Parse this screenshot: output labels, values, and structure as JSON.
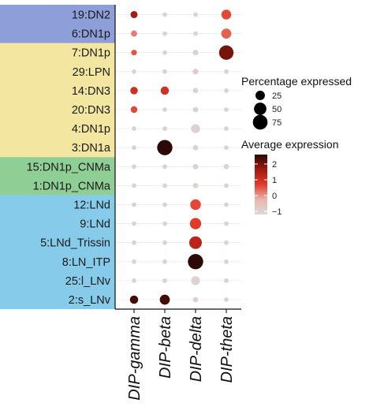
{
  "chart_data": {
    "type": "dotplot",
    "categories": [
      "19:DN2",
      "6:DN1p",
      "7:DN1p",
      "29:LPN",
      "14:DN3",
      "20:DN3",
      "4:DN1p",
      "3:DN1a",
      "15:DN1p_CNMa",
      "1:DN1p_CNMa",
      "12:LNd",
      "9:LNd",
      "5:LNd_Trissin",
      "8:LN_ITP",
      "25:l_LNv",
      "2:s_LNv"
    ],
    "genes": [
      "DIP-gamma",
      "DIP-beta",
      "DIP-delta",
      "DIP-theta"
    ],
    "groups": [
      {
        "color": "#8d9ed8",
        "from": 0,
        "to": 1
      },
      {
        "color": "#f3e6a0",
        "from": 2,
        "to": 7
      },
      {
        "color": "#8fcf95",
        "from": 8,
        "to": 9
      },
      {
        "color": "#86cbe9",
        "from": 10,
        "to": 15
      }
    ],
    "pct": [
      [
        12,
        3,
        3,
        28
      ],
      [
        8,
        3,
        3,
        30
      ],
      [
        6,
        3,
        6,
        72
      ],
      [
        3,
        3,
        6,
        3
      ],
      [
        14,
        18,
        5,
        3
      ],
      [
        10,
        3,
        5,
        3
      ],
      [
        3,
        3,
        22,
        3
      ],
      [
        3,
        82,
        5,
        3
      ],
      [
        3,
        3,
        5,
        5
      ],
      [
        3,
        3,
        5,
        3
      ],
      [
        3,
        3,
        35,
        3
      ],
      [
        3,
        3,
        40,
        3
      ],
      [
        3,
        3,
        52,
        3
      ],
      [
        3,
        3,
        82,
        3
      ],
      [
        3,
        3,
        22,
        3
      ],
      [
        18,
        30,
        5,
        3
      ]
    ],
    "avg": [
      [
        1.6,
        -1,
        -1,
        0.6
      ],
      [
        0.2,
        -1,
        -1,
        0.4
      ],
      [
        0.5,
        -1,
        -1,
        2.0
      ],
      [
        -1,
        -1,
        -0.8,
        -1
      ],
      [
        1.0,
        1.0,
        -1,
        -1
      ],
      [
        0.6,
        -1,
        -1,
        -1
      ],
      [
        -1,
        -1,
        -1,
        -1
      ],
      [
        -1,
        2.8,
        -1,
        -1
      ],
      [
        -1,
        -1,
        -1,
        -1
      ],
      [
        -1,
        -1,
        -1,
        -1
      ],
      [
        -1,
        -1,
        0.6,
        -1
      ],
      [
        -1,
        -1,
        0.7,
        -1
      ],
      [
        -1,
        -1,
        1.3,
        -1
      ],
      [
        -1,
        -1,
        2.8,
        -1
      ],
      [
        -1,
        -1,
        -1,
        -1
      ],
      [
        2.4,
        2.4,
        -1,
        -1
      ]
    ],
    "size_legend": {
      "title": "Percentage expressed",
      "values": [
        25,
        50,
        75
      ]
    },
    "color_legend": {
      "title": "Average expression",
      "ticks": [
        2,
        1,
        0,
        -1
      ],
      "min": -1.2,
      "max": 2.6,
      "colors": [
        "#d9d9d9",
        "#e8b7ad",
        "#e23a2a",
        "#a3190e",
        "#2a0906"
      ]
    }
  }
}
